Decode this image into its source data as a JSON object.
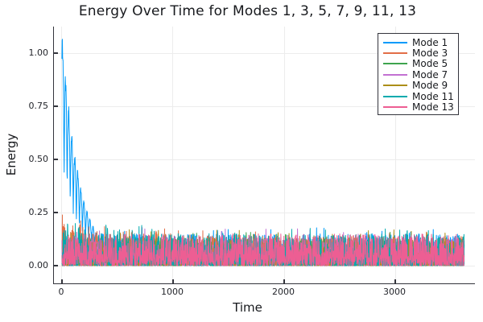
{
  "title": "Energy Over Time for Modes 1, 3, 5, 7, 9, 11, 13",
  "chart_data": {
    "type": "line",
    "title": "Energy Over Time for Modes 1, 3, 5, 7, 9, 11, 13",
    "xlabel": "Time",
    "ylabel": "Energy",
    "xlim": [
      -72,
      3717
    ],
    "ylim": [
      -0.083,
      1.125
    ],
    "x_ticks": [
      {
        "value": 0,
        "label": "0"
      },
      {
        "value": 1000,
        "label": "1000"
      },
      {
        "value": 2000,
        "label": "2000"
      },
      {
        "value": 3000,
        "label": "3000"
      }
    ],
    "y_ticks": [
      {
        "value": 0.0,
        "label": "0.00"
      },
      {
        "value": 0.25,
        "label": "0.25"
      },
      {
        "value": 0.5,
        "label": "0.50"
      },
      {
        "value": 0.75,
        "label": "0.75"
      },
      {
        "value": 1.0,
        "label": "1.00"
      }
    ],
    "grid": true,
    "legend_position": "top-right",
    "t_max": 3620,
    "n_points": 1810,
    "note": "Dense noisy modal-energy traces. Mode 1 begins with a rapidly oscillating burst peaking near 1.11 that decays by t~600; all modes then fluctuate in a 0-0.3 band (typical values 0-0.15, occasional spikes 0.25-0.33). Draw order Mode 1 first through Mode 13 last (pink on top).",
    "series": [
      {
        "label": "Mode 1",
        "color": "#009AFA",
        "seed": 101,
        "noise_base": 0.15,
        "noise_pow": 2.0,
        "spike_prob": 0.05,
        "spike_amp": 0.18,
        "transient": {
          "type": "decaying_oscillation",
          "peak": 1.11,
          "floor": 0.45,
          "osc_amp": 0.68,
          "period": 55,
          "tau": 158
        }
      },
      {
        "label": "Mode 3",
        "color": "#E26E47",
        "seed": 203,
        "noise_base": 0.14,
        "noise_pow": 2.3,
        "spike_prob": 0.04,
        "spike_amp": 0.16,
        "early_boost": {
          "factor": 0.9,
          "tau": 500
        }
      },
      {
        "label": "Mode 5",
        "color": "#3EA44E",
        "seed": 305,
        "noise_base": 0.13,
        "noise_pow": 2.3,
        "spike_prob": 0.035,
        "spike_amp": 0.16
      },
      {
        "label": "Mode 7",
        "color": "#C371D2",
        "seed": 407,
        "noise_base": 0.13,
        "noise_pow": 2.4,
        "spike_prob": 0.03,
        "spike_amp": 0.18
      },
      {
        "label": "Mode 9",
        "color": "#AC8E18",
        "seed": 509,
        "noise_base": 0.13,
        "noise_pow": 2.3,
        "spike_prob": 0.04,
        "spike_amp": 0.17
      },
      {
        "label": "Mode 11",
        "color": "#00AAAE",
        "seed": 611,
        "noise_base": 0.15,
        "noise_pow": 2.2,
        "spike_prob": 0.045,
        "spike_amp": 0.18,
        "early_boost": {
          "factor": 0.7,
          "tau": 400
        }
      },
      {
        "label": "Mode 13",
        "color": "#ED5E93",
        "seed": 713,
        "noise_base": 0.15,
        "noise_pow": 2.0,
        "spike_prob": 0.04,
        "spike_amp": 0.15
      }
    ]
  },
  "colors": {
    "background": "#ffffff",
    "spine": "#33343c",
    "gridline": "#ececec",
    "text": "#17191d"
  }
}
